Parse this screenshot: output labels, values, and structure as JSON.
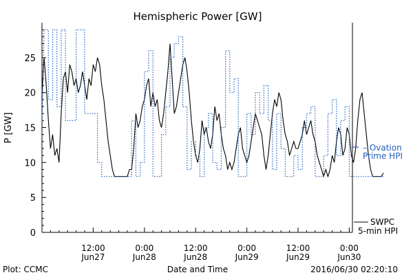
{
  "chart_data": {
    "type": "line",
    "title": "Hemispheric Power [GW]",
    "xlabel": "Date and Time",
    "ylabel": "P [GW]",
    "footer_left": "Plot: CCMC",
    "footer_right": "2016/06/30 02:20:10",
    "ylim": [
      0,
      30
    ],
    "y_ticks": [
      0,
      5,
      10,
      15,
      20,
      25
    ],
    "xlim_hours": [
      0,
      90
    ],
    "x_ticks": [
      {
        "hour": 12,
        "time": "12:00",
        "date": "Jun27"
      },
      {
        "hour": 24,
        "time": "0:00",
        "date": "Jun28"
      },
      {
        "hour": 36,
        "time": "12:00",
        "date": "Jun28"
      },
      {
        "hour": 48,
        "time": "0:00",
        "date": "Jun29"
      },
      {
        "hour": 60,
        "time": "12:00",
        "date": "Jun29"
      },
      {
        "hour": 72,
        "time": "0:00",
        "date": "Jun30"
      }
    ],
    "series": [
      {
        "name": "SWPC 5-min HPI",
        "legend_lines": [
          "SWPC",
          "5-min HPI"
        ],
        "color": "#000000",
        "style": "solid",
        "points": [
          [
            0.0,
            20
          ],
          [
            0.5,
            25
          ],
          [
            1.0,
            21
          ],
          [
            1.5,
            16
          ],
          [
            2.0,
            12
          ],
          [
            2.5,
            14
          ],
          [
            3.0,
            11
          ],
          [
            3.5,
            12
          ],
          [
            4.0,
            10
          ],
          [
            4.5,
            17
          ],
          [
            5.0,
            22
          ],
          [
            5.5,
            23
          ],
          [
            6.0,
            20
          ],
          [
            6.5,
            24
          ],
          [
            7.0,
            23
          ],
          [
            7.5,
            21
          ],
          [
            8.0,
            22
          ],
          [
            8.5,
            20
          ],
          [
            9.0,
            21
          ],
          [
            9.5,
            23
          ],
          [
            10.0,
            21
          ],
          [
            10.5,
            19
          ],
          [
            11.0,
            22
          ],
          [
            11.5,
            21
          ],
          [
            12.0,
            24
          ],
          [
            12.5,
            23
          ],
          [
            13.0,
            25
          ],
          [
            13.5,
            24
          ],
          [
            14.0,
            21
          ],
          [
            14.5,
            19
          ],
          [
            15.0,
            16
          ],
          [
            15.5,
            13
          ],
          [
            16.0,
            11
          ],
          [
            16.5,
            9
          ],
          [
            17.0,
            8
          ],
          [
            18.0,
            8
          ],
          [
            19.0,
            8
          ],
          [
            20.0,
            8
          ],
          [
            20.5,
            9
          ],
          [
            21.0,
            9
          ],
          [
            21.5,
            12
          ],
          [
            22.0,
            17
          ],
          [
            22.5,
            15
          ],
          [
            23.0,
            16
          ],
          [
            23.5,
            18
          ],
          [
            24.0,
            19
          ],
          [
            24.5,
            21
          ],
          [
            25.0,
            22
          ],
          [
            25.5,
            18
          ],
          [
            26.0,
            20
          ],
          [
            26.5,
            18
          ],
          [
            27.0,
            19
          ],
          [
            27.5,
            16
          ],
          [
            28.0,
            15
          ],
          [
            28.5,
            17
          ],
          [
            29.0,
            20
          ],
          [
            29.5,
            23
          ],
          [
            30.0,
            27
          ],
          [
            30.5,
            22
          ],
          [
            31.0,
            17
          ],
          [
            31.5,
            18
          ],
          [
            32.0,
            20
          ],
          [
            32.5,
            22
          ],
          [
            33.0,
            24
          ],
          [
            33.5,
            25
          ],
          [
            34.0,
            23
          ],
          [
            34.5,
            20
          ],
          [
            35.0,
            16
          ],
          [
            35.5,
            13
          ],
          [
            36.0,
            11
          ],
          [
            36.5,
            10
          ],
          [
            37.0,
            12
          ],
          [
            37.5,
            16
          ],
          [
            38.0,
            14
          ],
          [
            38.5,
            15
          ],
          [
            39.0,
            13
          ],
          [
            39.5,
            12
          ],
          [
            40.0,
            14
          ],
          [
            40.5,
            18
          ],
          [
            41.0,
            16
          ],
          [
            41.5,
            17
          ],
          [
            42.0,
            14
          ],
          [
            42.5,
            12
          ],
          [
            43.0,
            11
          ],
          [
            43.5,
            9
          ],
          [
            44.0,
            10
          ],
          [
            44.5,
            9
          ],
          [
            45.0,
            10
          ],
          [
            45.5,
            12
          ],
          [
            46.0,
            14
          ],
          [
            46.5,
            15
          ],
          [
            47.0,
            12
          ],
          [
            47.5,
            11
          ],
          [
            48.0,
            10
          ],
          [
            48.5,
            11
          ],
          [
            49.0,
            13
          ],
          [
            49.5,
            15
          ],
          [
            50.0,
            17
          ],
          [
            50.5,
            16
          ],
          [
            51.0,
            15
          ],
          [
            51.5,
            14
          ],
          [
            52.0,
            11
          ],
          [
            52.5,
            9
          ],
          [
            53.0,
            11
          ],
          [
            53.5,
            14
          ],
          [
            54.0,
            17
          ],
          [
            54.5,
            19
          ],
          [
            55.0,
            18
          ],
          [
            55.5,
            20
          ],
          [
            56.0,
            19
          ],
          [
            56.5,
            16
          ],
          [
            57.0,
            14
          ],
          [
            57.5,
            13
          ],
          [
            58.0,
            11
          ],
          [
            58.5,
            12
          ],
          [
            59.0,
            13
          ],
          [
            59.5,
            12
          ],
          [
            60.0,
            12
          ],
          [
            60.5,
            13
          ],
          [
            61.0,
            14
          ],
          [
            61.5,
            16
          ],
          [
            62.0,
            14
          ],
          [
            62.5,
            15
          ],
          [
            63.0,
            16
          ],
          [
            63.5,
            14
          ],
          [
            64.0,
            13
          ],
          [
            64.5,
            11
          ],
          [
            65.0,
            10
          ],
          [
            65.5,
            9
          ],
          [
            66.0,
            8
          ],
          [
            66.5,
            9
          ],
          [
            67.0,
            8
          ],
          [
            67.5,
            9
          ],
          [
            68.0,
            11
          ],
          [
            68.5,
            10
          ],
          [
            69.0,
            13
          ],
          [
            69.5,
            15
          ],
          [
            70.0,
            14
          ],
          [
            70.5,
            11
          ],
          [
            71.0,
            12
          ],
          [
            71.5,
            15
          ],
          [
            72.0,
            14
          ],
          [
            72.5,
            11
          ],
          [
            73.0,
            10
          ],
          [
            73.5,
            12
          ],
          [
            74.0,
            16
          ],
          [
            74.5,
            19
          ],
          [
            75.0,
            20
          ],
          [
            75.5,
            17
          ],
          [
            76.0,
            14
          ],
          [
            76.5,
            11
          ],
          [
            77.0,
            9
          ],
          [
            77.5,
            8
          ],
          [
            78.5,
            8
          ],
          [
            79.0,
            8
          ],
          [
            79.5,
            8
          ],
          [
            80.0,
            8.5
          ]
        ]
      },
      {
        "name": "Ovation Prime HPI",
        "legend_lines": [
          "– Ovation",
          "Prime HPI"
        ],
        "color": "#1f5fbf",
        "style": "dotted",
        "points": [
          [
            0,
            16
          ],
          [
            0.5,
            29
          ],
          [
            1.5,
            29
          ],
          [
            1.5,
            19
          ],
          [
            2.5,
            19
          ],
          [
            2.5,
            29
          ],
          [
            3.5,
            29
          ],
          [
            3.5,
            18
          ],
          [
            4.5,
            18
          ],
          [
            4.5,
            29
          ],
          [
            5.5,
            29
          ],
          [
            5.5,
            16
          ],
          [
            8.0,
            16
          ],
          [
            8.0,
            29
          ],
          [
            10,
            29
          ],
          [
            10,
            17
          ],
          [
            13,
            17
          ],
          [
            13,
            10
          ],
          [
            14,
            10
          ],
          [
            14,
            8
          ],
          [
            21,
            8
          ],
          [
            21,
            16
          ],
          [
            22,
            16
          ],
          [
            22,
            8
          ],
          [
            23,
            8
          ],
          [
            23,
            10
          ],
          [
            24,
            10
          ],
          [
            24,
            23
          ],
          [
            25,
            23
          ],
          [
            25,
            26
          ],
          [
            26,
            26
          ],
          [
            26,
            8
          ],
          [
            28,
            8
          ],
          [
            28,
            14
          ],
          [
            29,
            14
          ],
          [
            29,
            18
          ],
          [
            30,
            18
          ],
          [
            30,
            25
          ],
          [
            31,
            25
          ],
          [
            31,
            27
          ],
          [
            32,
            27
          ],
          [
            32,
            28
          ],
          [
            33,
            28
          ],
          [
            33,
            18
          ],
          [
            34,
            18
          ],
          [
            34,
            9
          ],
          [
            35,
            9
          ],
          [
            35,
            13
          ],
          [
            36,
            13
          ],
          [
            36,
            11
          ],
          [
            37,
            11
          ],
          [
            37,
            8
          ],
          [
            38,
            8
          ],
          [
            38,
            15
          ],
          [
            39,
            15
          ],
          [
            39,
            17
          ],
          [
            40,
            17
          ],
          [
            40,
            10
          ],
          [
            41,
            10
          ],
          [
            41,
            9
          ],
          [
            42,
            9
          ],
          [
            42,
            15
          ],
          [
            43,
            15
          ],
          [
            43,
            26
          ],
          [
            44,
            26
          ],
          [
            44,
            20
          ],
          [
            45,
            20
          ],
          [
            45,
            22
          ],
          [
            46,
            22
          ],
          [
            46,
            8
          ],
          [
            48,
            8
          ],
          [
            48,
            17
          ],
          [
            49,
            17
          ],
          [
            49,
            14
          ],
          [
            50,
            14
          ],
          [
            50,
            20
          ],
          [
            51,
            20
          ],
          [
            51,
            17
          ],
          [
            52,
            17
          ],
          [
            52,
            21
          ],
          [
            53,
            21
          ],
          [
            53,
            16
          ],
          [
            54,
            16
          ],
          [
            54,
            9
          ],
          [
            55,
            9
          ],
          [
            55,
            17
          ],
          [
            56,
            17
          ],
          [
            56,
            12
          ],
          [
            57,
            12
          ],
          [
            57,
            8
          ],
          [
            59,
            8
          ],
          [
            59,
            11
          ],
          [
            60,
            11
          ],
          [
            60,
            9
          ],
          [
            61,
            9
          ],
          [
            61,
            15
          ],
          [
            62,
            15
          ],
          [
            62,
            17
          ],
          [
            63,
            17
          ],
          [
            63,
            18
          ],
          [
            64,
            18
          ],
          [
            64,
            8
          ],
          [
            66,
            8
          ],
          [
            66,
            11
          ],
          [
            67,
            11
          ],
          [
            67,
            17
          ],
          [
            68,
            17
          ],
          [
            68,
            19
          ],
          [
            69,
            19
          ],
          [
            69,
            11
          ],
          [
            70,
            11
          ],
          [
            70,
            16
          ],
          [
            71,
            16
          ],
          [
            71,
            18
          ],
          [
            72,
            18
          ],
          [
            72,
            8
          ],
          [
            80,
            8
          ]
        ]
      }
    ]
  }
}
